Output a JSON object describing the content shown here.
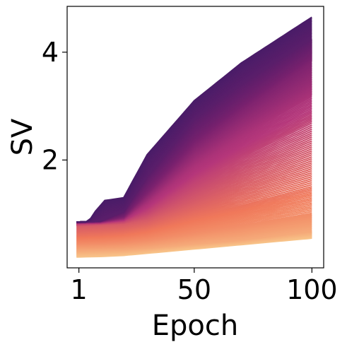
{
  "chart_data": {
    "type": "line",
    "xlabel": "Epoch",
    "ylabel": "SV",
    "xlim": [
      -4,
      105
    ],
    "ylim": [
      0,
      4.85
    ],
    "x_ticks": [
      {
        "value": 1,
        "label": "1"
      },
      {
        "value": 50,
        "label": "50"
      },
      {
        "value": 100,
        "label": "100"
      }
    ],
    "y_ticks": [
      {
        "value": 2,
        "label": "2"
      },
      {
        "value": 4,
        "label": "4"
      }
    ],
    "grid": false,
    "legend": "none",
    "colormap": "magma (dark purple for largest singular values, light orange for smallest)",
    "colors": {
      "top": "#4a1c68",
      "middle": "#b5367a",
      "bottom": "#f8c58a"
    },
    "series_summary": {
      "count": "many (one line per singular value)",
      "x_range": [
        0,
        100
      ],
      "start_values_range": [
        0.2,
        0.85
      ],
      "end_values_range": [
        0.55,
        4.65
      ]
    },
    "highlighted_series": [
      {
        "x": [
          0,
          5,
          8,
          12,
          20,
          30,
          50,
          70,
          100
        ],
        "values": [
          0.85,
          0.85,
          1.05,
          1.25,
          1.3,
          2.1,
          3.1,
          3.8,
          4.65
        ]
      },
      {
        "x": [
          0,
          10,
          20,
          30,
          50,
          70,
          100
        ],
        "values": [
          0.85,
          0.87,
          1.05,
          1.7,
          2.75,
          3.4,
          4.25
        ]
      },
      {
        "x": [
          0,
          10,
          20,
          30,
          50,
          70,
          100
        ],
        "values": [
          0.85,
          0.86,
          1.0,
          1.55,
          2.5,
          3.15,
          4.05
        ]
      },
      {
        "x": [
          0,
          10,
          20,
          30,
          50,
          70,
          100
        ],
        "values": [
          0.85,
          0.86,
          0.95,
          1.4,
          2.3,
          2.95,
          3.85
        ]
      },
      {
        "x": [
          0,
          10,
          20,
          30,
          50,
          70,
          100
        ],
        "values": [
          0.84,
          0.85,
          0.92,
          1.3,
          2.1,
          2.7,
          3.5
        ]
      },
      {
        "x": [
          0,
          10,
          20,
          30,
          50,
          70,
          100
        ],
        "values": [
          0.83,
          0.84,
          0.9,
          1.2,
          1.9,
          2.45,
          3.2
        ]
      },
      {
        "x": [
          0,
          10,
          20,
          30,
          50,
          70,
          100
        ],
        "values": [
          0.82,
          0.83,
          0.87,
          1.05,
          1.6,
          2.05,
          2.7
        ]
      },
      {
        "x": [
          0,
          10,
          20,
          30,
          50,
          70,
          100
        ],
        "values": [
          0.78,
          0.8,
          0.82,
          0.9,
          1.25,
          1.6,
          2.1
        ]
      },
      {
        "x": [
          0,
          10,
          20,
          30,
          50,
          70,
          100
        ],
        "values": [
          0.6,
          0.62,
          0.65,
          0.72,
          0.95,
          1.15,
          1.5
        ]
      },
      {
        "x": [
          0,
          10,
          20,
          30,
          50,
          70,
          100
        ],
        "values": [
          0.45,
          0.46,
          0.48,
          0.52,
          0.65,
          0.78,
          1.0
        ]
      },
      {
        "x": [
          0,
          10,
          20,
          30,
          50,
          70,
          100
        ],
        "values": [
          0.32,
          0.33,
          0.34,
          0.37,
          0.45,
          0.52,
          0.68
        ]
      },
      {
        "x": [
          0,
          10,
          20,
          30,
          50,
          70,
          100
        ],
        "values": [
          0.2,
          0.21,
          0.23,
          0.27,
          0.35,
          0.43,
          0.55
        ]
      }
    ]
  }
}
